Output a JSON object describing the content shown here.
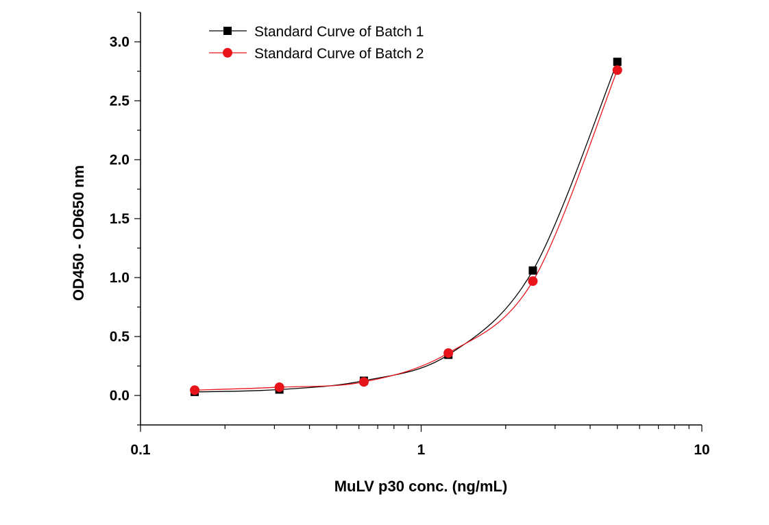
{
  "chart_data": {
    "type": "line",
    "title": "",
    "xlabel": "MuLV p30 conc. (ng/mL)",
    "ylabel": "OD450 - OD650 nm",
    "xscale": "log",
    "xlim": [
      0.1,
      10
    ],
    "ylim": [
      -0.25,
      3.25
    ],
    "xticks": [
      {
        "v": 0.1,
        "label": "0.1"
      },
      {
        "v": 1,
        "label": "1"
      },
      {
        "v": 10,
        "label": "10"
      }
    ],
    "yticks": [
      {
        "v": 0,
        "label": "0.0"
      },
      {
        "v": 0.5,
        "label": "0.5"
      },
      {
        "v": 1,
        "label": "1.0"
      },
      {
        "v": 1.5,
        "label": "1.5"
      },
      {
        "v": 2,
        "label": "2.0"
      },
      {
        "v": 2.5,
        "label": "2.5"
      },
      {
        "v": 3,
        "label": "3.0"
      }
    ],
    "legend_position": "top-left",
    "grid": false,
    "series": [
      {
        "name": "Standard Curve of Batch 1",
        "color": "#000000",
        "marker": "square",
        "x": [
          0.156,
          0.3125,
          0.625,
          1.25,
          2.5,
          5
        ],
        "y": [
          0.03,
          0.05,
          0.125,
          0.345,
          1.06,
          2.83
        ]
      },
      {
        "name": "Standard Curve of Batch 2",
        "color": "#e8141b",
        "marker": "circle",
        "x": [
          0.156,
          0.3125,
          0.625,
          1.25,
          2.5,
          5
        ],
        "y": [
          0.045,
          0.07,
          0.115,
          0.36,
          0.97,
          2.76
        ]
      }
    ]
  }
}
